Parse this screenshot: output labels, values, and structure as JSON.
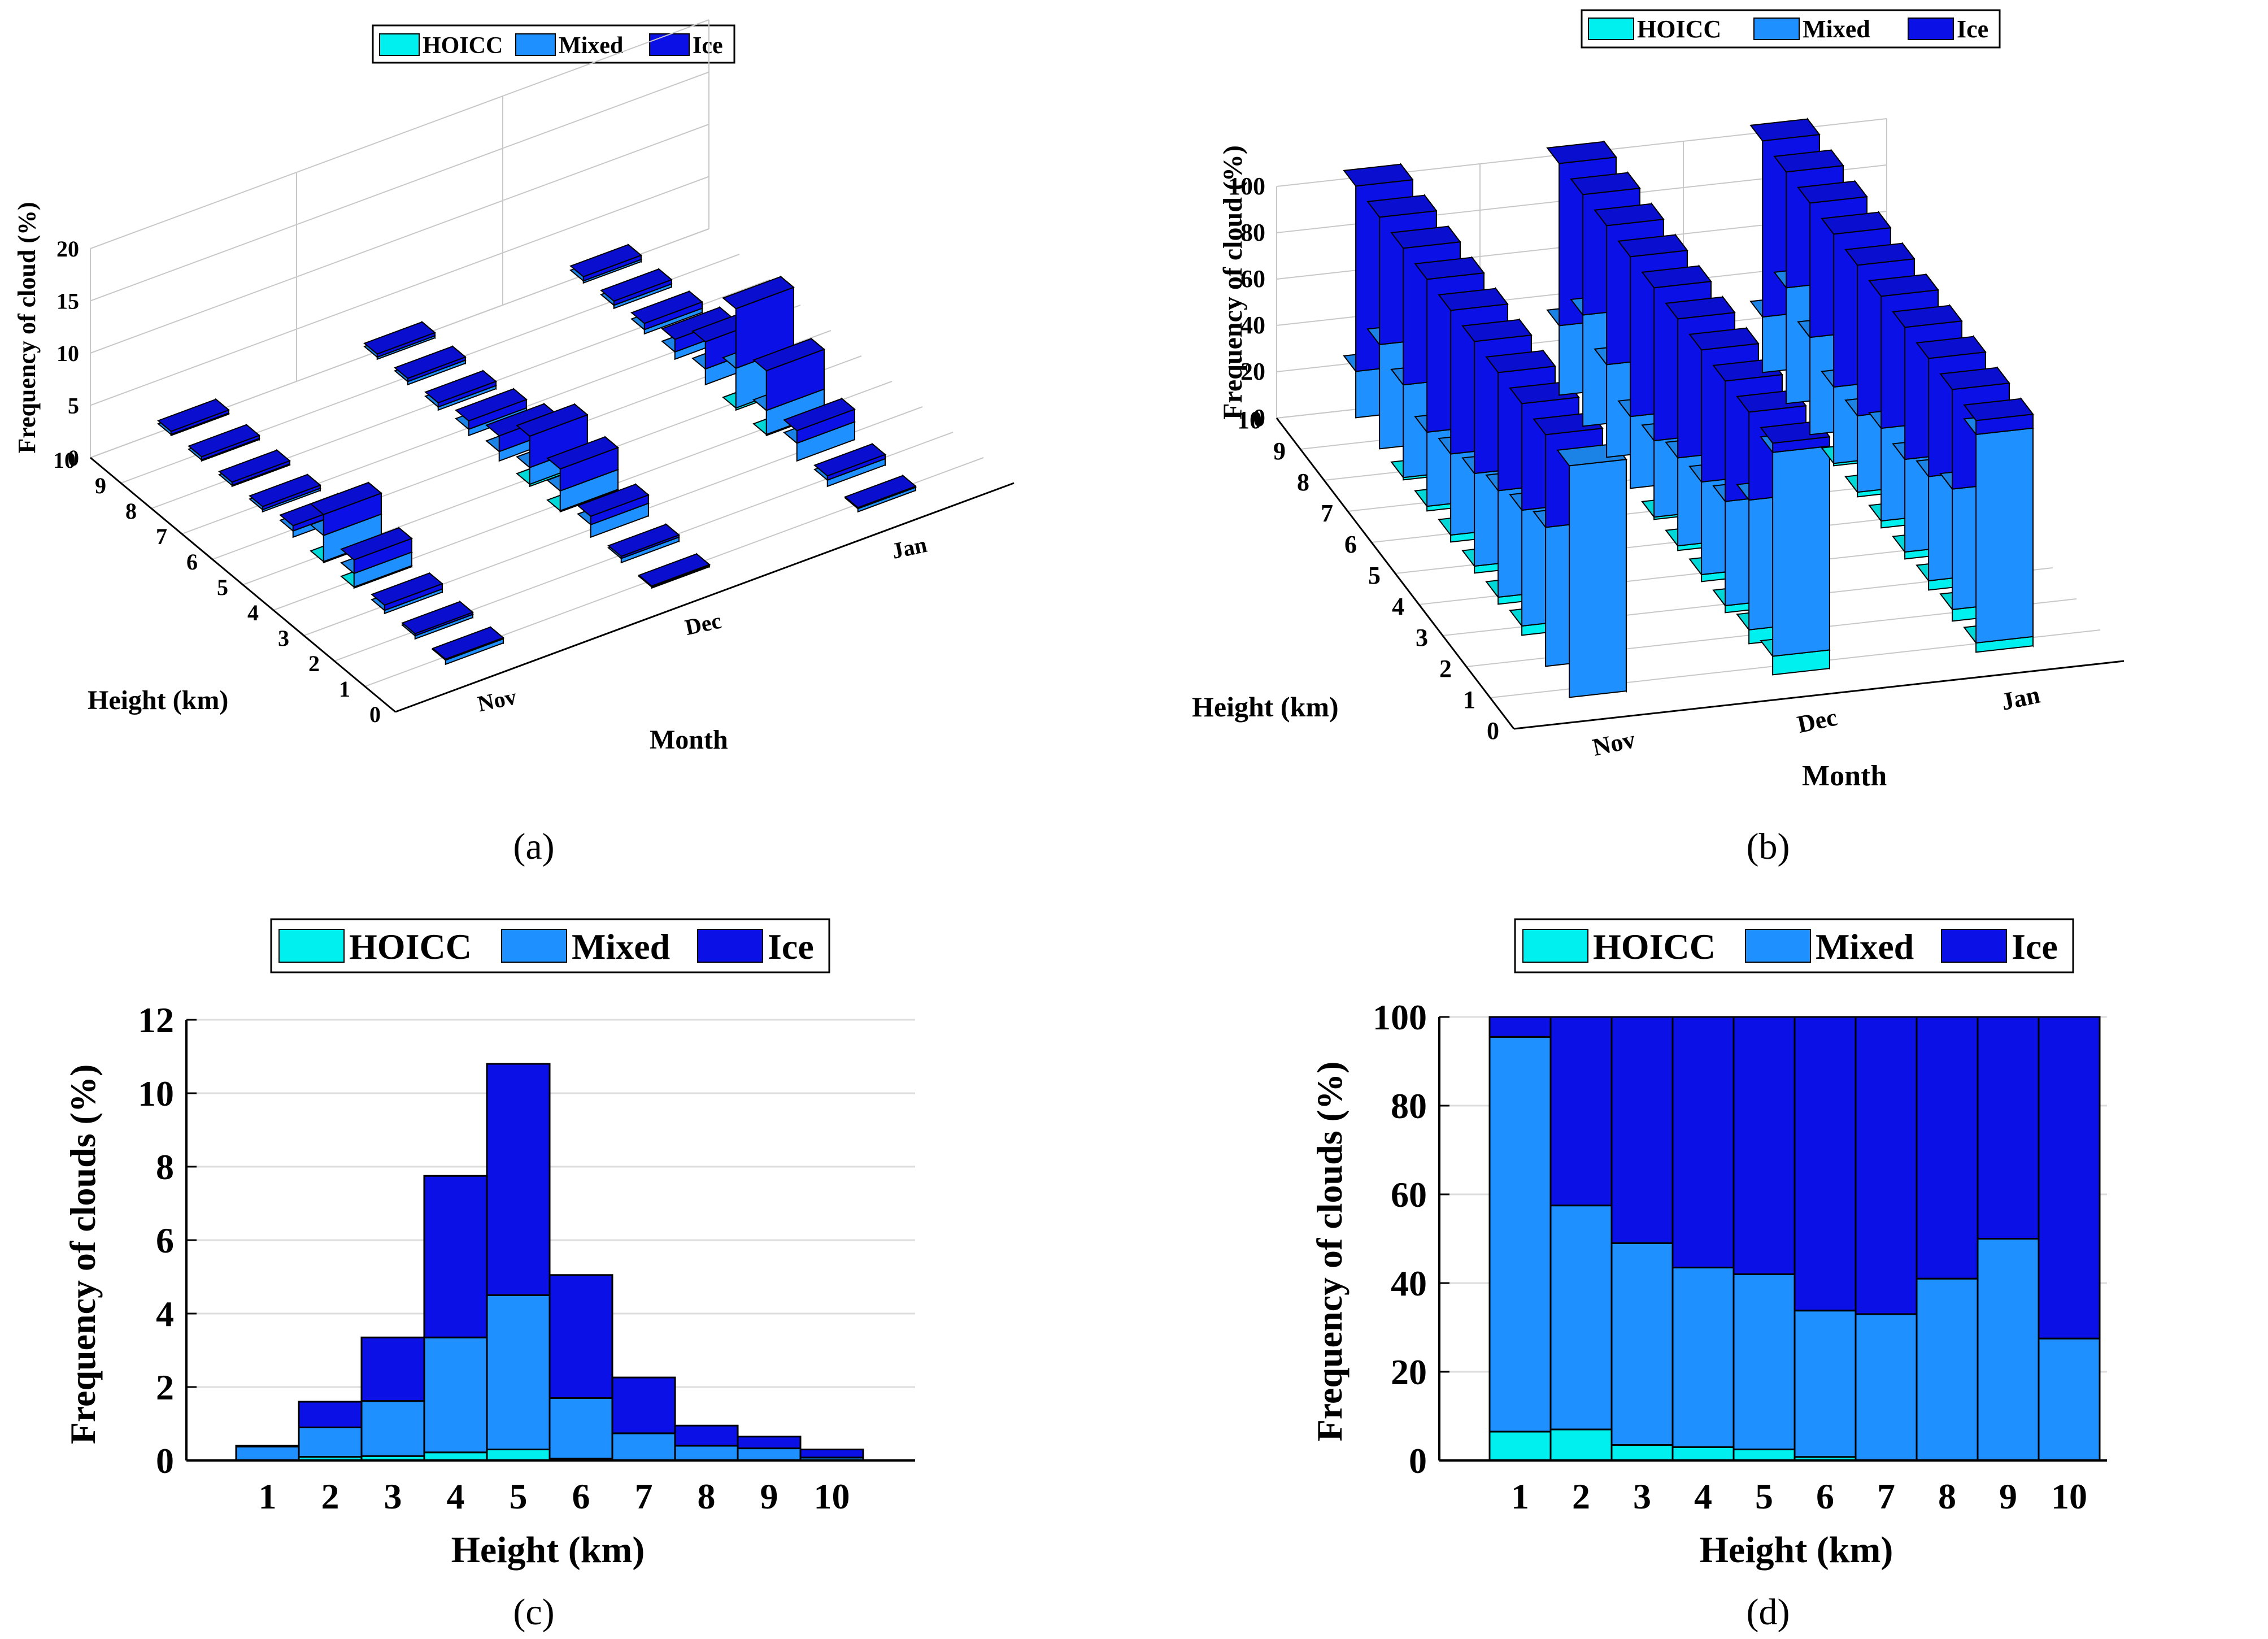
{
  "colors": {
    "hoicc": "#00f0f0",
    "mixed": "#1e90ff",
    "ice": "#0a10e6",
    "grid": "#dddddd",
    "axis": "#000000",
    "axis3d": "#c8c8c8"
  },
  "legend": [
    "HOICC",
    "Mixed",
    "Ice"
  ],
  "chart_data": [
    {
      "panel": "a",
      "panel_label": "(a)",
      "type": "bar3d-stacked",
      "zlabel": "Frequency of cloud (%)",
      "ylabel": "Height (km)",
      "xlabel": "Month",
      "months": [
        "Nov",
        "Dec",
        "Jan"
      ],
      "heights": [
        1,
        2,
        3,
        4,
        5,
        6,
        7,
        8,
        9,
        10
      ],
      "zticks": [
        0,
        5,
        10,
        15,
        20
      ],
      "zlim": [
        0,
        20
      ],
      "yticks": [
        0,
        1,
        2,
        3,
        4,
        5,
        6,
        7,
        8,
        9,
        10
      ],
      "series": [
        {
          "name": "HOICC",
          "values": [
            [
              0,
              0,
              0,
              0.1,
              0.1,
              0,
              0,
              0,
              0,
              0
            ],
            [
              0,
              0,
              0,
              0.1,
              0.2,
              0,
              0,
              0,
              0,
              0
            ],
            [
              0,
              0,
              0,
              0.1,
              0.2,
              0,
              0,
              0,
              0,
              0
            ]
          ]
        },
        {
          "name": "Mixed",
          "values": [
            [
              0.4,
              0.3,
              0.3,
              1.3,
              2.5,
              0.6,
              0.2,
              0.1,
              0.1,
              0.1
            ],
            [
              0.1,
              0.4,
              1.2,
              1.9,
              1.6,
              0.9,
              0.6,
              0.3,
              0.3,
              0.2
            ],
            [
              0.3,
              0.6,
              1.7,
              2.3,
              3.8,
              1.5,
              0.7,
              0.4,
              0.3,
              0.2
            ]
          ]
        },
        {
          "name": "Ice",
          "values": [
            [
              0.1,
              0.2,
              0.5,
              1.3,
              2.0,
              0.5,
              0.3,
              0.3,
              0.3,
              0.3
            ],
            [
              0.1,
              0.2,
              0.8,
              2.1,
              3.0,
              1.5,
              0.8,
              0.4,
              0.3,
              0.3
            ],
            [
              0.1,
              0.4,
              1.2,
              3.8,
              5.7,
              2.6,
              1.2,
              0.6,
              0.4,
              0.4
            ]
          ]
        }
      ]
    },
    {
      "panel": "b",
      "panel_label": "(b)",
      "type": "bar3d-stacked",
      "zlabel": "Frequency of cloud (%)",
      "ylabel": "Height (km)",
      "xlabel": "Month",
      "months": [
        "Nov",
        "Dec",
        "Jan"
      ],
      "heights": [
        1,
        2,
        3,
        4,
        5,
        6,
        7,
        8,
        9,
        10
      ],
      "zticks": [
        0,
        20,
        40,
        60,
        80,
        100
      ],
      "zlim": [
        0,
        100
      ],
      "yticks": [
        0,
        1,
        2,
        3,
        4,
        5,
        6,
        7,
        8,
        9,
        10
      ],
      "series": [
        {
          "name": "HOICC",
          "values": [
            [
              0,
              0,
              4,
              3,
              3,
              3,
              2,
              1,
              0,
              0
            ],
            [
              8,
              6,
              3,
              3,
              2,
              1,
              0,
              0,
              0,
              0
            ],
            [
              4,
              5,
              4,
              3,
              3,
              2,
              1,
              0,
              0,
              0
            ]
          ]
        },
        {
          "name": "Mixed",
          "values": [
            [
              100,
              60,
              50,
              46,
              40,
              35,
              32,
              40,
              45,
              20
            ],
            [
              88,
              56,
              45,
              40,
              38,
              33,
              31,
              40,
              48,
              30
            ],
            [
              90,
              52,
              45,
              40,
              40,
              33,
              33,
              42,
              50,
              24
            ]
          ]
        },
        {
          "name": "Ice",
          "values": [
            [
              0,
              40,
              46,
              51,
              57,
              62,
              66,
              59,
              55,
              80
            ],
            [
              4,
              38,
              52,
              57,
              60,
              66,
              69,
              60,
              52,
              70
            ],
            [
              6,
              43,
              51,
              57,
              57,
              65,
              66,
              58,
              50,
              76
            ]
          ]
        }
      ]
    },
    {
      "panel": "c",
      "panel_label": "(c)",
      "type": "bar-stacked",
      "xlabel": "Height (km)",
      "ylabel": "Frequency of clouds (%)",
      "categories": [
        "1",
        "2",
        "3",
        "4",
        "5",
        "6",
        "7",
        "8",
        "9",
        "10"
      ],
      "yticks": [
        0,
        2,
        4,
        6,
        8,
        10,
        12
      ],
      "ylim": [
        0,
        12
      ],
      "series": [
        {
          "name": "HOICC",
          "values": [
            0.0,
            0.1,
            0.12,
            0.22,
            0.3,
            0.05,
            0.0,
            0.0,
            0.0,
            0.0
          ]
        },
        {
          "name": "Mixed",
          "values": [
            0.38,
            0.8,
            1.5,
            3.13,
            4.2,
            1.65,
            0.74,
            0.4,
            0.33,
            0.08
          ]
        },
        {
          "name": "Ice",
          "values": [
            0.02,
            0.7,
            1.73,
            4.4,
            6.3,
            3.35,
            1.52,
            0.55,
            0.32,
            0.22
          ]
        }
      ]
    },
    {
      "panel": "d",
      "panel_label": "(d)",
      "type": "bar-stacked",
      "xlabel": "Height (km)",
      "ylabel": "Frequency of clouds (%)",
      "categories": [
        "1",
        "2",
        "3",
        "4",
        "5",
        "6",
        "7",
        "8",
        "9",
        "10"
      ],
      "yticks": [
        0,
        20,
        40,
        60,
        80,
        100
      ],
      "ylim": [
        0,
        100
      ],
      "series": [
        {
          "name": "HOICC",
          "values": [
            6.5,
            7,
            3.5,
            3,
            2.5,
            0.8,
            0,
            0,
            0,
            0
          ]
        },
        {
          "name": "Mixed",
          "values": [
            89,
            50.5,
            45.5,
            40.5,
            39.5,
            33,
            33,
            41,
            50,
            27.5
          ]
        },
        {
          "name": "Ice",
          "values": [
            4.5,
            42.5,
            51,
            56.5,
            58,
            66.2,
            67,
            59,
            50,
            72.5
          ]
        }
      ]
    }
  ]
}
